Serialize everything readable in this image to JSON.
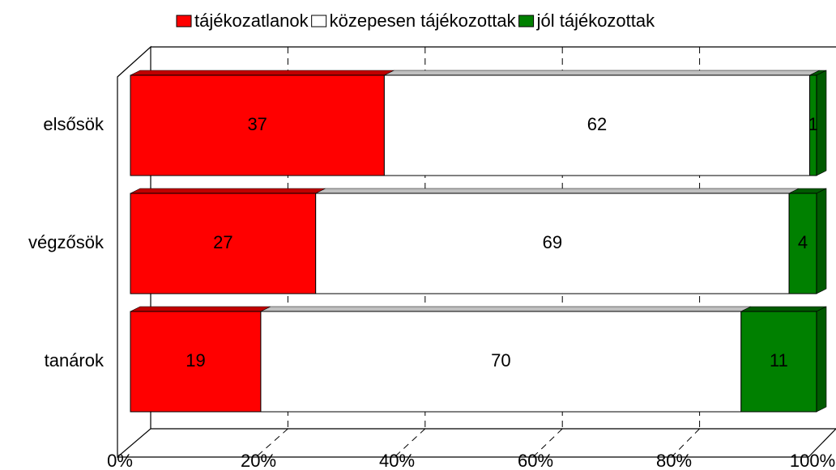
{
  "chart_data": {
    "type": "bar",
    "orientation": "horizontal",
    "stacked": true,
    "categories": [
      "elsősök",
      "végzősök",
      "tanárok"
    ],
    "series": [
      {
        "name": "tájékozatlanok",
        "color": "#ff0000",
        "values": [
          37,
          27,
          19
        ]
      },
      {
        "name": "közepesen tájékozottak",
        "color": "#ffffff",
        "values": [
          62,
          69,
          70
        ]
      },
      {
        "name": "jól tájékozottak",
        "color": "#008000",
        "values": [
          1,
          4,
          11
        ]
      }
    ],
    "xlim": [
      0,
      100
    ],
    "xticks": [
      {
        "value": 0,
        "label": "0%"
      },
      {
        "value": 20,
        "label": "20%"
      },
      {
        "value": 40,
        "label": "40%"
      },
      {
        "value": 60,
        "label": "60%"
      },
      {
        "value": 80,
        "label": "80%"
      },
      {
        "value": 100,
        "label": "100%"
      }
    ],
    "grid": true,
    "legend": "top"
  }
}
